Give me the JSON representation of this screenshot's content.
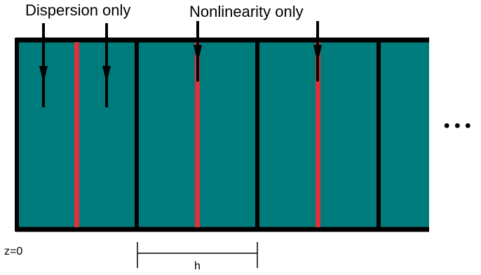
{
  "labels": {
    "dispersion": "Dispersion only",
    "nonlinearity": "Nonlinearity only",
    "z0": "z=0",
    "step": "h",
    "ellipsis": "• • •"
  },
  "colors": {
    "fiber": "#007b7b",
    "nonlinear_plane": "#e0303a",
    "outline": "#000000"
  },
  "diagram": {
    "segments": 4,
    "red_planes": 3,
    "arrows_to_dispersion": 2,
    "arrows_to_nonlinearity": 2
  }
}
